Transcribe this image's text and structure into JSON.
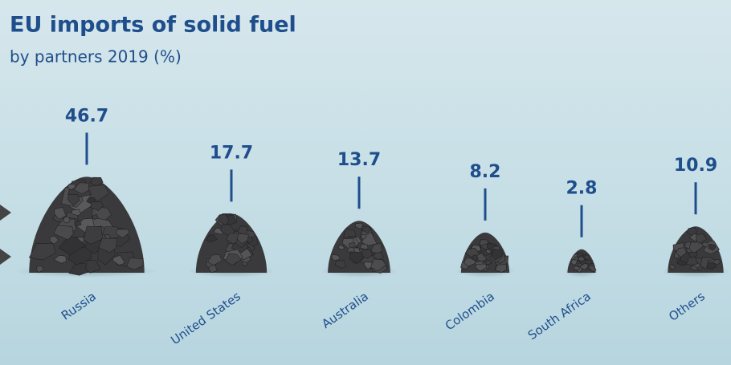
{
  "chart_data": {
    "type": "pictorial",
    "title": "EU imports of solid fuel",
    "subtitle": "by partners 2019 (%)",
    "categories": [
      "Russia",
      "United States",
      "Australia",
      "Colombia",
      "South Africa",
      "Others"
    ],
    "values": [
      46.7,
      17.7,
      13.7,
      8.2,
      2.8,
      10.9
    ],
    "color": "#3a3a3c",
    "label_color": "#1f4e8c"
  }
}
